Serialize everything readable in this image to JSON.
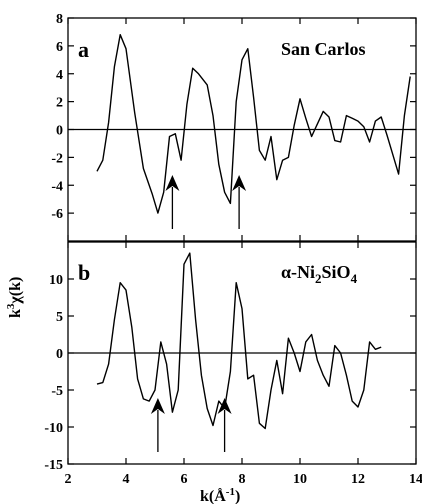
{
  "chart_data": [
    {
      "type": "line",
      "panel_label": "a",
      "sample": "San Carlos",
      "xlim": [
        2,
        14
      ],
      "ylim": [
        -8,
        8
      ],
      "yticks": [
        8,
        6,
        4,
        2,
        0,
        -2,
        -4,
        -6
      ],
      "ytick_labels": [
        "8",
        "6",
        "4",
        "2",
        "0",
        "-2",
        "-4",
        "-6"
      ],
      "arrows_at_k": [
        5.6,
        7.9
      ],
      "x": [
        3.0,
        3.2,
        3.4,
        3.6,
        3.8,
        4.0,
        4.3,
        4.6,
        4.9,
        5.1,
        5.3,
        5.5,
        5.7,
        5.9,
        6.1,
        6.3,
        6.5,
        6.8,
        7.0,
        7.2,
        7.4,
        7.6,
        7.8,
        8.0,
        8.2,
        8.4,
        8.6,
        8.8,
        9.0,
        9.2,
        9.4,
        9.6,
        9.8,
        10.0,
        10.2,
        10.4,
        10.6,
        10.8,
        11.0,
        11.2,
        11.4,
        11.6,
        11.8,
        12.0,
        12.2,
        12.4,
        12.6,
        12.8,
        13.0,
        13.2,
        13.4,
        13.6,
        13.8
      ],
      "y": [
        -3.0,
        -2.2,
        0.5,
        4.5,
        6.8,
        5.8,
        1.2,
        -2.8,
        -4.6,
        -6.0,
        -4.5,
        -0.5,
        -0.3,
        -2.2,
        1.8,
        4.4,
        4.0,
        3.2,
        1.0,
        -2.5,
        -4.5,
        -5.3,
        2.0,
        5.0,
        5.8,
        2.3,
        -1.5,
        -2.2,
        -0.5,
        -3.6,
        -2.2,
        -2.0,
        0.3,
        2.2,
        0.8,
        -0.5,
        0.4,
        1.3,
        0.9,
        -0.8,
        -0.9,
        1.0,
        0.8,
        0.6,
        0.2,
        -0.9,
        0.6,
        0.9,
        -0.4,
        -1.8,
        -3.2,
        1.0,
        3.8
      ]
    },
    {
      "type": "line",
      "panel_label": "b",
      "sample": "α-Ni",
      "sample_sub1": "2",
      "sample_mid": "SiO",
      "sample_sub2": "4",
      "xlim": [
        2,
        14
      ],
      "ylim": [
        -15,
        15
      ],
      "yticks": [
        10,
        5,
        0,
        -5,
        -10,
        -15
      ],
      "ytick_labels": [
        "10",
        "5",
        "0",
        "-5",
        "-10",
        "-15"
      ],
      "arrows_at_k": [
        5.1,
        7.4
      ],
      "x": [
        3.0,
        3.2,
        3.4,
        3.6,
        3.8,
        4.0,
        4.2,
        4.4,
        4.6,
        4.8,
        5.0,
        5.2,
        5.4,
        5.6,
        5.8,
        6.0,
        6.2,
        6.4,
        6.6,
        6.8,
        7.0,
        7.2,
        7.4,
        7.6,
        7.8,
        8.0,
        8.2,
        8.4,
        8.6,
        8.8,
        9.0,
        9.2,
        9.4,
        9.6,
        9.8,
        10.0,
        10.2,
        10.4,
        10.6,
        10.8,
        11.0,
        11.2,
        11.4,
        11.6,
        11.8,
        12.0,
        12.2,
        12.4,
        12.6,
        12.8
      ],
      "y": [
        -4.2,
        -4.0,
        -1.5,
        4.5,
        9.5,
        8.5,
        3.5,
        -3.5,
        -6.2,
        -6.5,
        -5.0,
        1.5,
        -1.5,
        -8.0,
        -5.0,
        12.0,
        13.5,
        4.5,
        -3.0,
        -7.5,
        -9.8,
        -6.5,
        -7.5,
        -2.5,
        9.5,
        6.0,
        -3.5,
        -3.0,
        -9.5,
        -10.2,
        -5.0,
        -1.0,
        -5.5,
        2.0,
        0.0,
        -2.5,
        1.5,
        2.5,
        -1.0,
        -3.0,
        -4.5,
        1.0,
        0.0,
        -3.0,
        -6.5,
        -7.3,
        -5.0,
        1.5,
        0.5,
        0.8
      ]
    }
  ],
  "shared": {
    "xticks": [
      2,
      4,
      6,
      8,
      10,
      12,
      14
    ],
    "xtick_labels": [
      "2",
      "4",
      "6",
      "8",
      "10",
      "12",
      "14"
    ],
    "ylabel": "k",
    "ylabel_sup": "3",
    "ylabel_rest": "χ(k)",
    "xlabel": "k(Å",
    "xlabel_sup": "-1",
    "xlabel_end": ")"
  },
  "colors": {
    "line": "#000000",
    "background": "#ffffff"
  }
}
